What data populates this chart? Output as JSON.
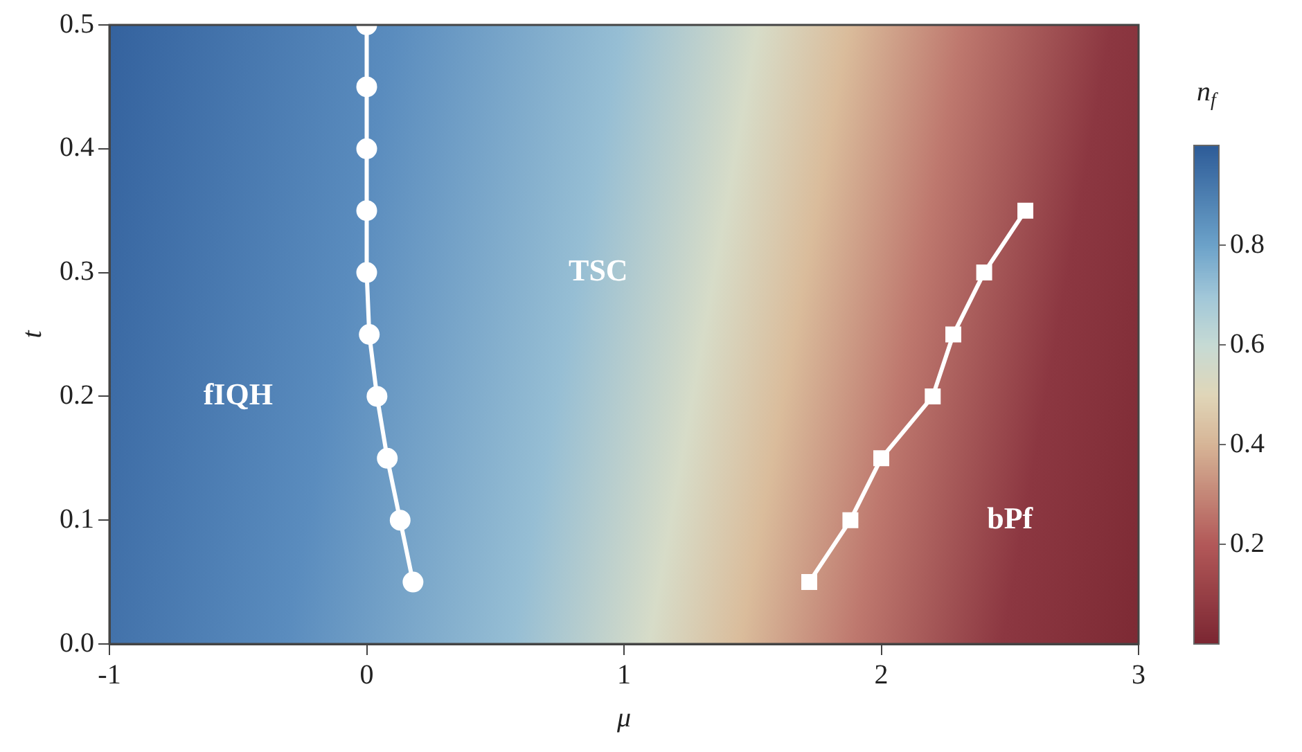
{
  "chart_data": {
    "type": "line",
    "xlabel": "μ",
    "ylabel": "t",
    "clabel": "n$_{f}$",
    "xlim": [
      -1,
      3
    ],
    "ylim": [
      0,
      0.5
    ],
    "xticks": [
      -1,
      0,
      1,
      2,
      3
    ],
    "yticks": [
      {
        "value": 0,
        "label": "0.0"
      },
      {
        "value": 0.1,
        "label": "0.1"
      },
      {
        "value": 0.2,
        "label": "0.2"
      },
      {
        "value": 0.3,
        "label": "0.3"
      },
      {
        "value": 0.4,
        "label": "0.4"
      },
      {
        "value": 0.5,
        "label": "0.5"
      }
    ],
    "clim": [
      0,
      1
    ],
    "cticks": [
      0.2,
      0.4,
      0.6,
      0.8
    ],
    "annotations": [
      "fIQH",
      "TSC",
      "bPf"
    ],
    "series": [
      {
        "type": "line",
        "color": "#ffffff",
        "marker": "circle",
        "x": [
          0,
          0,
          0,
          0,
          0,
          0.01,
          0.04,
          0.08,
          0.13,
          0.18
        ],
        "values": [
          0.5,
          0.45,
          0.4,
          0.35,
          0.3,
          0.25,
          0.2,
          0.15,
          0.1,
          0.05
        ]
      },
      {
        "type": "line",
        "color": "#ffffff",
        "marker": "square",
        "x": [
          1.72,
          1.88,
          2.0,
          2.2,
          2.28,
          2.4,
          2.56
        ],
        "values": [
          0.05,
          0.1,
          0.15,
          0.2,
          0.25,
          0.3,
          0.35
        ]
      }
    ]
  }
}
